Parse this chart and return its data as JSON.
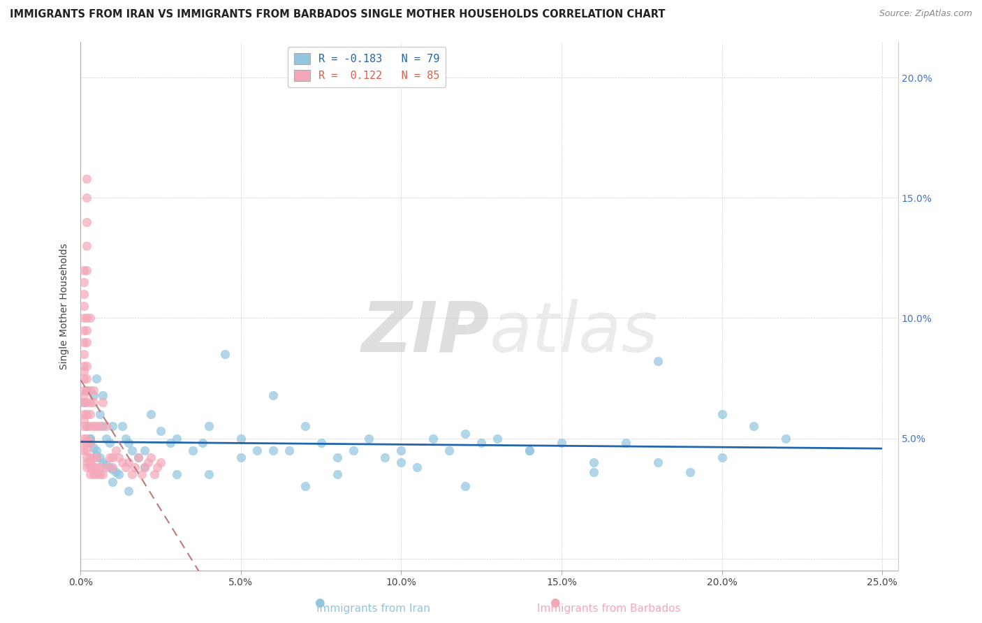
{
  "title": "IMMIGRANTS FROM IRAN VS IMMIGRANTS FROM BARBADOS SINGLE MOTHER HOUSEHOLDS CORRELATION CHART",
  "source": "Source: ZipAtlas.com",
  "ylabel": "Single Mother Households",
  "xlim": [
    0.0,
    0.255
  ],
  "ylim": [
    -0.005,
    0.215
  ],
  "xticks": [
    0.0,
    0.05,
    0.1,
    0.15,
    0.2,
    0.25
  ],
  "xtick_labels": [
    "0.0%",
    "5.0%",
    "10.0%",
    "15.0%",
    "20.0%",
    "25.0%"
  ],
  "yticks": [
    0.0,
    0.05,
    0.1,
    0.15,
    0.2
  ],
  "ytick_labels_right": [
    "",
    "5.0%",
    "10.0%",
    "15.0%",
    "20.0%"
  ],
  "iran_R": -0.183,
  "iran_N": 79,
  "barbados_R": 0.122,
  "barbados_N": 85,
  "iran_color": "#92c5de",
  "barbados_color": "#f4a7b9",
  "iran_line_color": "#2166ac",
  "barbados_line_color": "#d6604d",
  "barbados_trend_color": "#c0787a",
  "watermark_color": "#d8d8d8",
  "iran_x": [
    0.001,
    0.002,
    0.002,
    0.003,
    0.003,
    0.004,
    0.004,
    0.005,
    0.005,
    0.006,
    0.006,
    0.007,
    0.007,
    0.008,
    0.008,
    0.009,
    0.009,
    0.01,
    0.01,
    0.011,
    0.012,
    0.013,
    0.014,
    0.015,
    0.016,
    0.018,
    0.02,
    0.022,
    0.025,
    0.028,
    0.03,
    0.035,
    0.038,
    0.04,
    0.045,
    0.05,
    0.055,
    0.06,
    0.065,
    0.07,
    0.075,
    0.08,
    0.085,
    0.09,
    0.095,
    0.1,
    0.105,
    0.11,
    0.115,
    0.12,
    0.125,
    0.13,
    0.14,
    0.15,
    0.16,
    0.17,
    0.18,
    0.19,
    0.2,
    0.21,
    0.22,
    0.04,
    0.06,
    0.08,
    0.1,
    0.12,
    0.14,
    0.16,
    0.18,
    0.2,
    0.003,
    0.005,
    0.007,
    0.01,
    0.015,
    0.02,
    0.03,
    0.05,
    0.07
  ],
  "iran_y": [
    0.065,
    0.055,
    0.07,
    0.05,
    0.048,
    0.046,
    0.068,
    0.045,
    0.043,
    0.042,
    0.06,
    0.04,
    0.055,
    0.039,
    0.05,
    0.038,
    0.048,
    0.037,
    0.055,
    0.036,
    0.035,
    0.055,
    0.05,
    0.048,
    0.045,
    0.042,
    0.038,
    0.06,
    0.053,
    0.048,
    0.05,
    0.045,
    0.048,
    0.055,
    0.085,
    0.05,
    0.045,
    0.068,
    0.045,
    0.055,
    0.048,
    0.042,
    0.045,
    0.05,
    0.042,
    0.04,
    0.038,
    0.05,
    0.045,
    0.052,
    0.048,
    0.05,
    0.045,
    0.048,
    0.036,
    0.048,
    0.04,
    0.036,
    0.06,
    0.055,
    0.05,
    0.035,
    0.045,
    0.035,
    0.045,
    0.03,
    0.045,
    0.04,
    0.082,
    0.042,
    0.05,
    0.075,
    0.068,
    0.032,
    0.028,
    0.045,
    0.035,
    0.042,
    0.03
  ],
  "barbados_x": [
    0.001,
    0.001,
    0.001,
    0.001,
    0.001,
    0.001,
    0.001,
    0.001,
    0.001,
    0.001,
    0.001,
    0.001,
    0.001,
    0.001,
    0.001,
    0.001,
    0.001,
    0.001,
    0.001,
    0.001,
    0.002,
    0.002,
    0.002,
    0.002,
    0.002,
    0.002,
    0.002,
    0.002,
    0.002,
    0.002,
    0.002,
    0.002,
    0.002,
    0.002,
    0.002,
    0.002,
    0.002,
    0.002,
    0.002,
    0.002,
    0.003,
    0.003,
    0.003,
    0.003,
    0.003,
    0.003,
    0.003,
    0.003,
    0.003,
    0.003,
    0.004,
    0.004,
    0.004,
    0.004,
    0.004,
    0.004,
    0.005,
    0.005,
    0.005,
    0.005,
    0.006,
    0.006,
    0.006,
    0.007,
    0.007,
    0.008,
    0.008,
    0.009,
    0.01,
    0.01,
    0.011,
    0.012,
    0.013,
    0.014,
    0.015,
    0.016,
    0.017,
    0.018,
    0.019,
    0.02,
    0.021,
    0.022,
    0.023,
    0.024,
    0.025
  ],
  "barbados_y": [
    0.045,
    0.048,
    0.05,
    0.055,
    0.058,
    0.06,
    0.065,
    0.068,
    0.07,
    0.075,
    0.078,
    0.08,
    0.085,
    0.09,
    0.095,
    0.1,
    0.105,
    0.11,
    0.115,
    0.12,
    0.038,
    0.04,
    0.042,
    0.045,
    0.048,
    0.05,
    0.055,
    0.06,
    0.065,
    0.07,
    0.075,
    0.08,
    0.09,
    0.095,
    0.1,
    0.12,
    0.13,
    0.14,
    0.15,
    0.158,
    0.035,
    0.038,
    0.04,
    0.042,
    0.048,
    0.055,
    0.06,
    0.065,
    0.07,
    0.1,
    0.035,
    0.038,
    0.042,
    0.055,
    0.065,
    0.07,
    0.035,
    0.038,
    0.042,
    0.055,
    0.035,
    0.038,
    0.055,
    0.035,
    0.065,
    0.038,
    0.055,
    0.042,
    0.038,
    0.042,
    0.045,
    0.042,
    0.04,
    0.038,
    0.04,
    0.035,
    0.038,
    0.042,
    0.035,
    0.038,
    0.04,
    0.042,
    0.035,
    0.038,
    0.04
  ]
}
